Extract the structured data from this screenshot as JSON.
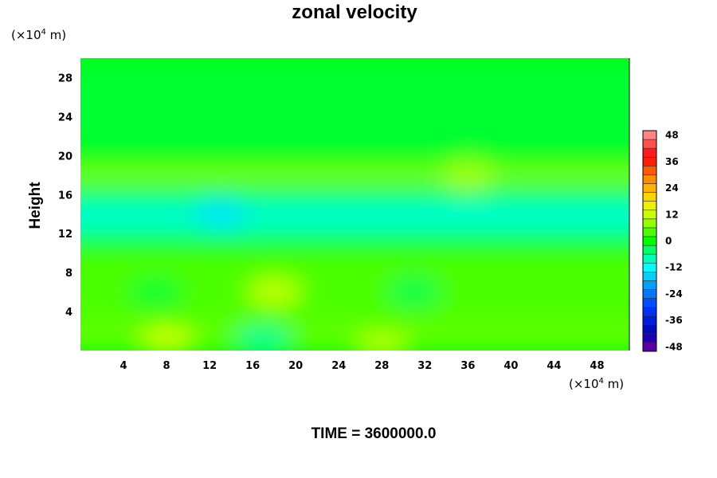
{
  "chart_data": {
    "type": "heatmap",
    "title": "zonal velocity",
    "ylabel": "Height",
    "xlabel": "",
    "y_unit": {
      "prefix": "(×10",
      "exponent": "4",
      "suffix": " m)"
    },
    "x_unit": {
      "prefix": "(×10",
      "exponent": "4",
      "suffix": " m)"
    },
    "x_range": [
      0,
      51
    ],
    "y_range": [
      0,
      30
    ],
    "x_ticks": [
      4,
      8,
      12,
      16,
      20,
      24,
      28,
      32,
      36,
      40,
      44,
      48
    ],
    "y_ticks": [
      4,
      8,
      12,
      16,
      20,
      24,
      28
    ],
    "colorbar": {
      "range": [
        -50,
        50
      ],
      "step": 4,
      "tick_values": [
        48,
        36,
        24,
        12,
        0,
        -12,
        -24,
        -36,
        -48
      ]
    },
    "field_bands": [
      {
        "z": [
          0,
          3
        ],
        "value": 5
      },
      {
        "z": [
          3,
          10
        ],
        "value": 4
      },
      {
        "z": [
          10,
          11.5
        ],
        "value": 1
      },
      {
        "z": [
          11.5,
          13
        ],
        "value": -6
      },
      {
        "z": [
          13,
          15
        ],
        "value": -10
      },
      {
        "z": [
          15,
          17
        ],
        "value": -4
      },
      {
        "z": [
          17,
          19
        ],
        "value": 6
      },
      {
        "z": [
          19,
          20.5
        ],
        "value": -1
      },
      {
        "z": [
          20.5,
          30
        ],
        "value": -2
      }
    ],
    "features": [
      {
        "x": 8,
        "z": 1,
        "value": 12
      },
      {
        "x": 18,
        "z": 6,
        "value": 11
      },
      {
        "x": 7,
        "z": 6,
        "value": -2
      },
      {
        "x": 13,
        "z": 14,
        "value": -14
      },
      {
        "x": 36,
        "z": 18,
        "value": 9
      },
      {
        "x": 17,
        "z": 1,
        "value": -6
      },
      {
        "x": 28,
        "z": 0.5,
        "value": 10
      },
      {
        "x": 31,
        "z": 6,
        "value": -3
      }
    ],
    "annotation": "TIME = 3600000.0"
  }
}
